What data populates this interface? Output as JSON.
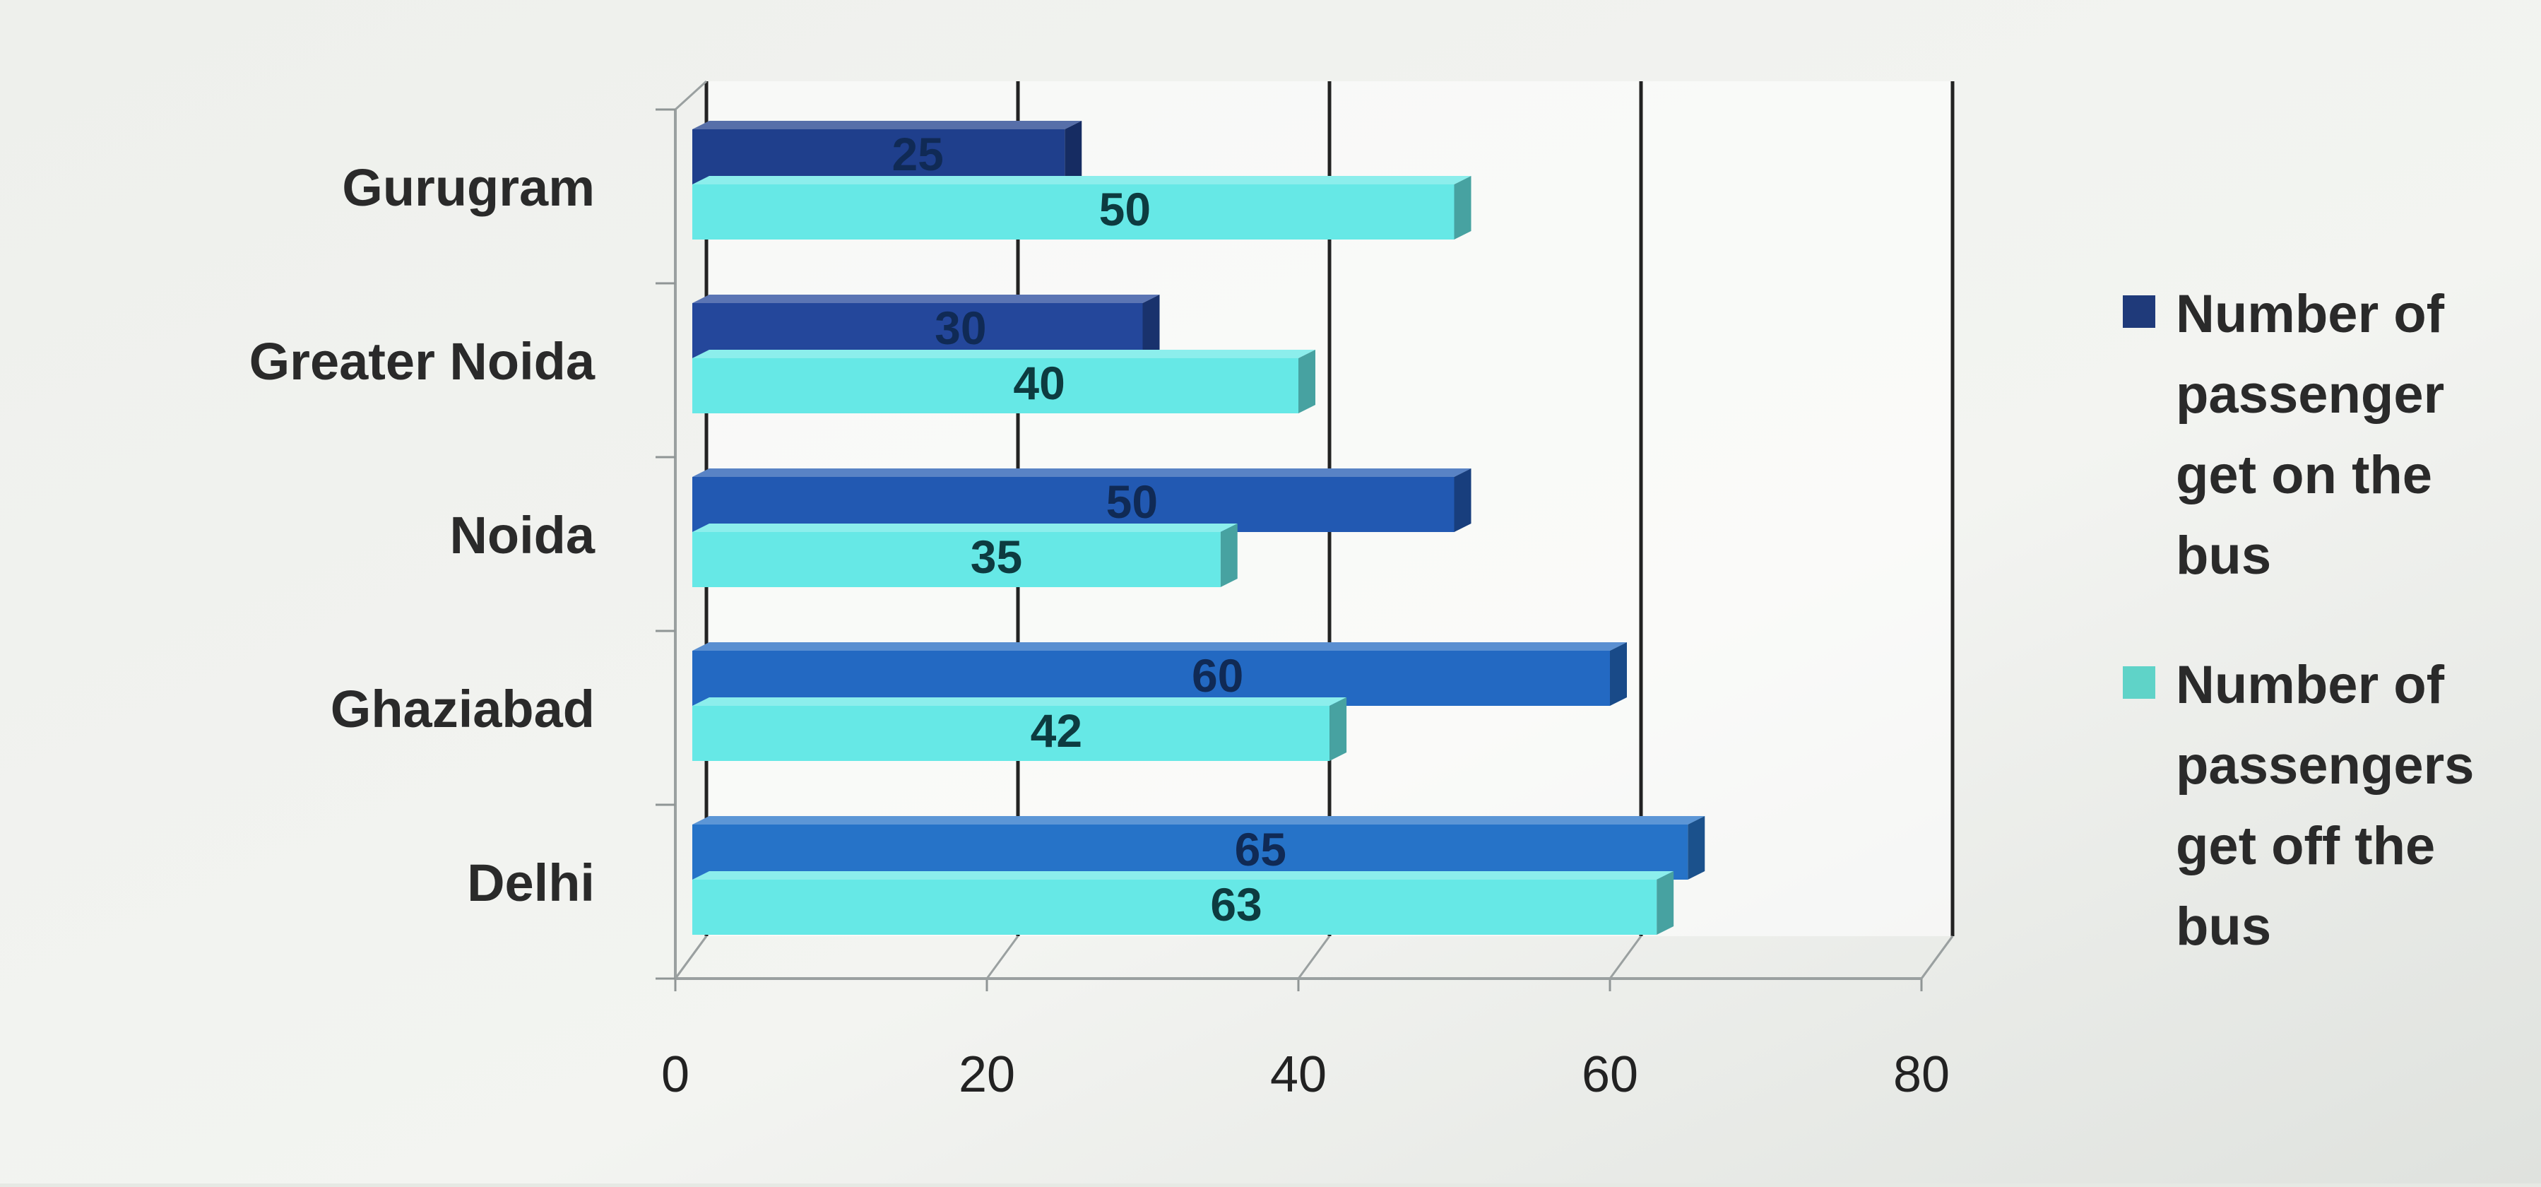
{
  "chart_data": {
    "type": "bar",
    "orientation": "horizontal",
    "style": "3d",
    "categories": [
      "Gurugram",
      "Greater Noida",
      "Noida",
      "Ghaziabad",
      "Delhi"
    ],
    "series": [
      {
        "name": "Number of passenger get on the bus",
        "legend_lines": [
          "Number of",
          "passenger",
          "get on the",
          "bus"
        ],
        "values": [
          25,
          30,
          50,
          60,
          65
        ],
        "colors": [
          "#1f3f8c",
          "#24479b",
          "#2259b2",
          "#2369c2",
          "#2673c8"
        ]
      },
      {
        "name": "Number of passengers get off the bus",
        "legend_lines": [
          "Number of",
          "passengers",
          "get off the",
          "bus"
        ],
        "values": [
          50,
          40,
          35,
          42,
          63
        ],
        "colors": [
          "#66e8e6",
          "#66e8e6",
          "#66e8e6",
          "#66e8e6",
          "#66e8e6"
        ]
      }
    ],
    "x_ticks": [
      0,
      20,
      40,
      60,
      80
    ],
    "xlim": [
      0,
      80
    ],
    "grid": true,
    "legend_position": "right",
    "legend_colors": [
      "#1f3a7a",
      "#5fd3c8"
    ],
    "title": "",
    "xlabel": "",
    "ylabel": ""
  }
}
